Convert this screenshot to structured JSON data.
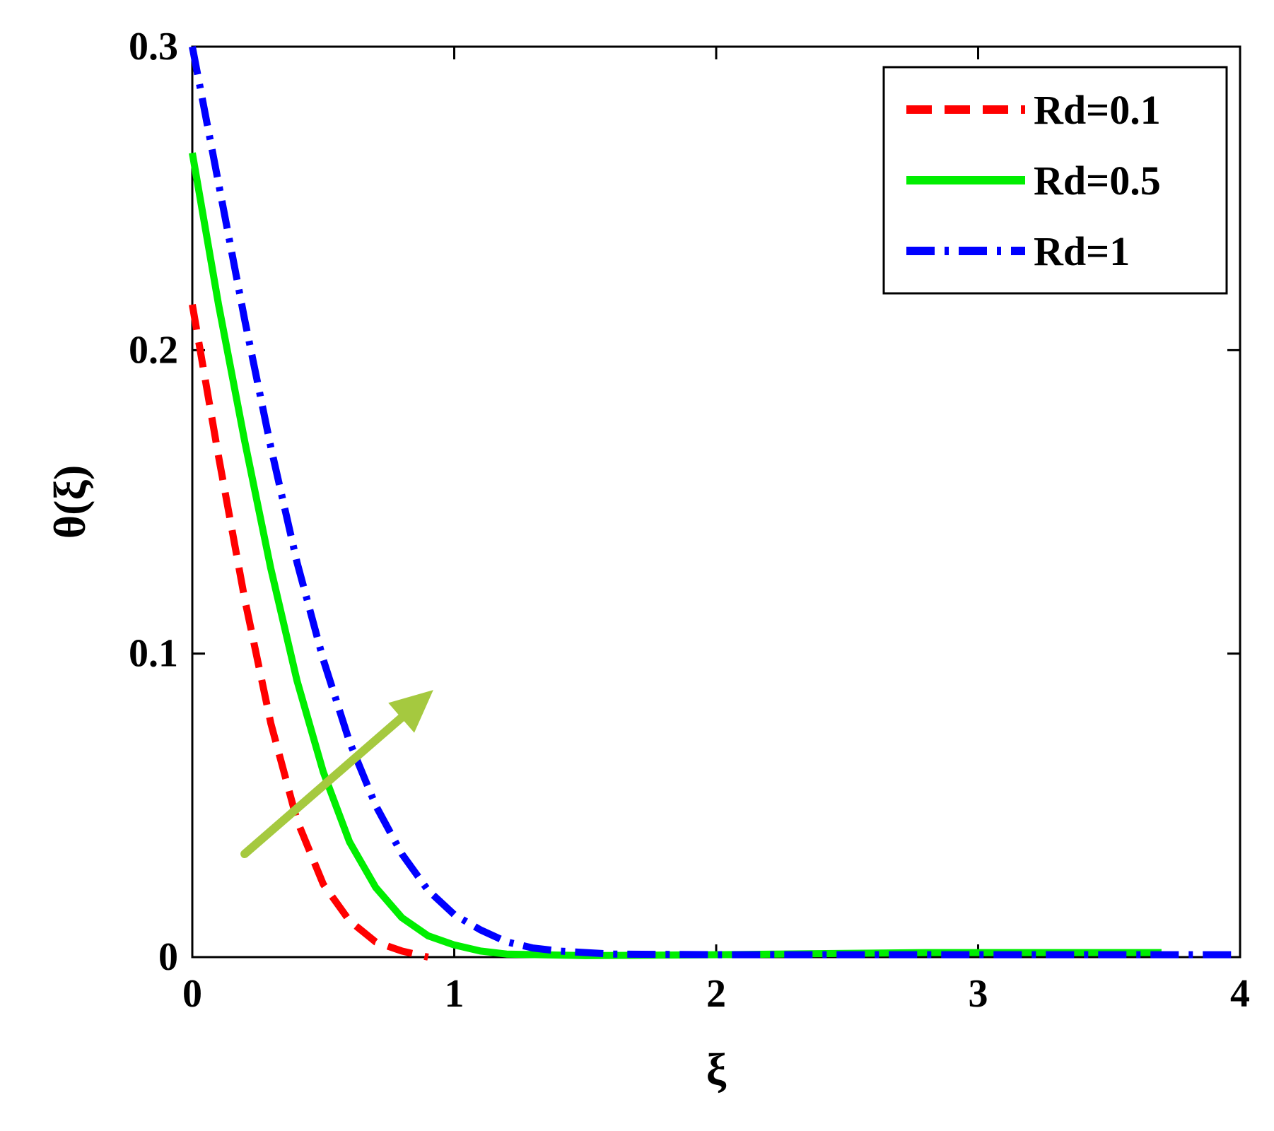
{
  "chart_data": {
    "type": "line",
    "title": "",
    "xlabel": "ξ",
    "ylabel": "θ(ξ)",
    "xlim": [
      0,
      4
    ],
    "ylim": [
      0,
      0.3
    ],
    "xticks": [
      0,
      1,
      2,
      3,
      4
    ],
    "xtick_labels": [
      "0",
      "1",
      "2",
      "3",
      "4"
    ],
    "yticks": [
      0,
      0.1,
      0.2,
      0.3
    ],
    "ytick_labels": [
      "0",
      "0.1",
      "0.2",
      "0.3"
    ],
    "grid": false,
    "legend_position": "top-right",
    "series": [
      {
        "name": "Rd=0.1",
        "color": "#ff0000",
        "style": "dashed",
        "x": [
          0,
          0.1,
          0.2,
          0.3,
          0.4,
          0.5,
          0.6,
          0.7,
          0.8,
          0.9
        ],
        "y": [
          0.215,
          0.165,
          0.118,
          0.077,
          0.045,
          0.024,
          0.012,
          0.005,
          0.002,
          0.0
        ]
      },
      {
        "name": "Rd=0.5",
        "color": "#00ee00",
        "style": "solid",
        "x": [
          0,
          0.1,
          0.2,
          0.3,
          0.4,
          0.5,
          0.6,
          0.7,
          0.8,
          0.9,
          1.0,
          1.1,
          1.2,
          1.5,
          2.0,
          2.8,
          3.7
        ],
        "y": [
          0.265,
          0.215,
          0.17,
          0.128,
          0.091,
          0.061,
          0.038,
          0.023,
          0.013,
          0.007,
          0.004,
          0.002,
          0.001,
          0.0005,
          0.0008,
          0.0015,
          0.0015
        ]
      },
      {
        "name": "Rd=1",
        "color": "#0000ff",
        "style": "dashdot",
        "x": [
          0,
          0.1,
          0.2,
          0.3,
          0.4,
          0.5,
          0.6,
          0.7,
          0.8,
          0.9,
          1.0,
          1.1,
          1.2,
          1.3,
          1.4,
          1.6,
          2.0,
          3.0,
          4.0
        ],
        "y": [
          0.3,
          0.255,
          0.21,
          0.168,
          0.13,
          0.098,
          0.071,
          0.05,
          0.034,
          0.022,
          0.014,
          0.009,
          0.005,
          0.003,
          0.002,
          0.001,
          0.0008,
          0.0008,
          0.0008
        ]
      }
    ],
    "annotations": [
      {
        "type": "arrow",
        "color": "#a5c93f",
        "from": [
          0.2,
          0.034
        ],
        "to": [
          0.92,
          0.088
        ],
        "meaning": "increasing Rd"
      }
    ]
  }
}
